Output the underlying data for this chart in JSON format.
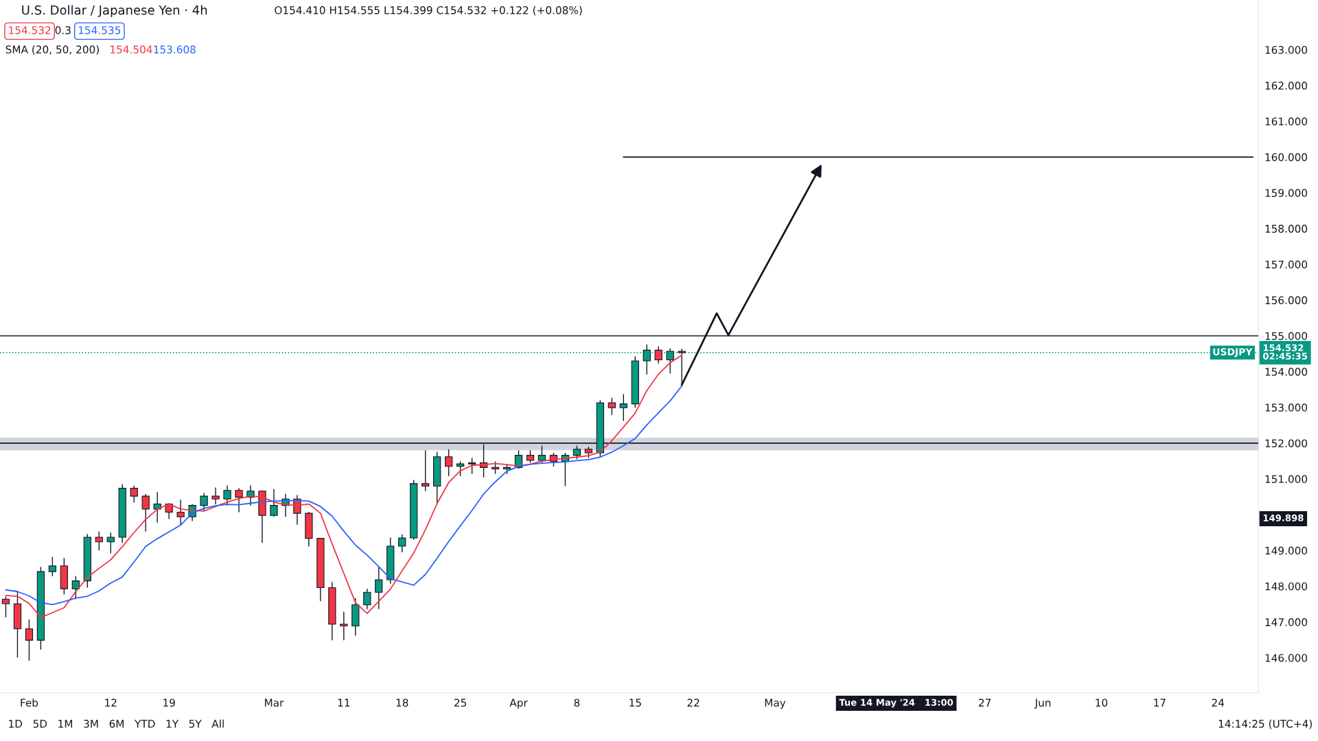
{
  "chart_data": {
    "type": "candlestick",
    "title": "U.S. Dollar / Japanese Yen · 4h",
    "subtitle": "O154.410 H154.555 L154.399 C154.532 +0.122 (+0.08%)",
    "categories": [
      null,
      null,
      "Feb",
      null,
      null,
      null,
      null,
      null,
      null,
      "12",
      null,
      null,
      null,
      null,
      "19",
      null,
      null,
      null,
      null,
      null,
      null,
      null,
      null,
      "Mar",
      null,
      null,
      null,
      null,
      null,
      "11",
      null,
      null,
      null,
      null,
      "18",
      null,
      null,
      null,
      null,
      "25",
      null,
      null,
      null,
      null,
      "Apr",
      null,
      null,
      null,
      null,
      "8",
      null,
      null,
      null,
      null,
      "15",
      null,
      null,
      null,
      null,
      "22",
      null,
      null,
      null,
      null,
      null,
      null,
      "May",
      null,
      null,
      null,
      null,
      null,
      null,
      null,
      null,
      null,
      null,
      null,
      null,
      null,
      null,
      null,
      null,
      null,
      "27",
      null,
      null,
      null,
      null,
      "Jun",
      null,
      null,
      null,
      null,
      "10",
      null,
      null,
      null,
      null,
      "17",
      null,
      null,
      null,
      null,
      "24",
      null,
      null,
      null
    ],
    "ohlc": [
      [
        147.64,
        147.71,
        147.13,
        147.51
      ],
      [
        147.51,
        147.87,
        146.01,
        146.81
      ],
      [
        146.81,
        147.07,
        145.92,
        146.49
      ],
      [
        146.49,
        148.54,
        146.23,
        148.41
      ],
      [
        148.41,
        148.82,
        148.28,
        148.57
      ],
      [
        148.57,
        148.79,
        147.77,
        147.93
      ],
      [
        147.93,
        148.28,
        147.64,
        148.15
      ],
      [
        148.15,
        149.46,
        147.96,
        149.37
      ],
      [
        149.37,
        149.53,
        149.0,
        149.24
      ],
      [
        149.24,
        149.5,
        148.92,
        149.37
      ],
      [
        149.37,
        150.85,
        149.21,
        150.74
      ],
      [
        150.74,
        150.81,
        150.34,
        150.52
      ],
      [
        150.52,
        150.58,
        149.53,
        150.16
      ],
      [
        150.16,
        150.63,
        149.78,
        150.3
      ],
      [
        150.3,
        150.33,
        149.88,
        150.07
      ],
      [
        150.07,
        150.42,
        149.7,
        149.94
      ],
      [
        149.94,
        150.29,
        149.82,
        150.26
      ],
      [
        150.26,
        150.61,
        150.1,
        150.52
      ],
      [
        150.52,
        150.76,
        150.29,
        150.44
      ],
      [
        150.44,
        150.82,
        150.26,
        150.68
      ],
      [
        150.68,
        150.74,
        150.07,
        150.49
      ],
      [
        150.49,
        150.82,
        150.26,
        150.66
      ],
      [
        150.66,
        150.68,
        149.21,
        149.98
      ],
      [
        149.98,
        150.72,
        149.94,
        150.26
      ],
      [
        150.26,
        150.58,
        149.94,
        150.44
      ],
      [
        150.44,
        150.55,
        149.72,
        150.04
      ],
      [
        150.04,
        150.08,
        149.11,
        149.34
      ],
      [
        149.34,
        149.34,
        147.58,
        147.96
      ],
      [
        147.96,
        148.12,
        146.49,
        146.94
      ],
      [
        146.94,
        147.29,
        146.49,
        146.89
      ],
      [
        146.89,
        147.67,
        146.62,
        147.48
      ],
      [
        147.48,
        147.93,
        147.36,
        147.83
      ],
      [
        147.83,
        148.54,
        147.36,
        148.18
      ],
      [
        148.18,
        149.36,
        148.07,
        149.12
      ],
      [
        149.12,
        149.45,
        148.95,
        149.35
      ],
      [
        149.35,
        150.97,
        149.3,
        150.87
      ],
      [
        150.87,
        151.8,
        150.66,
        150.8
      ],
      [
        150.8,
        151.76,
        150.32,
        151.62
      ],
      [
        151.62,
        151.83,
        151.08,
        151.35
      ],
      [
        151.35,
        151.49,
        151.08,
        151.42
      ],
      [
        151.42,
        151.59,
        151.14,
        151.45
      ],
      [
        151.45,
        151.97,
        151.04,
        151.32
      ],
      [
        151.32,
        151.49,
        151.14,
        151.28
      ],
      [
        151.28,
        151.42,
        151.14,
        151.32
      ],
      [
        151.32,
        151.8,
        151.28,
        151.66
      ],
      [
        151.66,
        151.8,
        151.45,
        151.52
      ],
      [
        151.52,
        151.93,
        151.45,
        151.66
      ],
      [
        151.66,
        151.73,
        151.35,
        151.49
      ],
      [
        151.49,
        151.73,
        150.8,
        151.66
      ],
      [
        151.66,
        151.93,
        151.55,
        151.83
      ],
      [
        151.83,
        151.9,
        151.59,
        151.73
      ],
      [
        151.73,
        153.2,
        151.62,
        153.13
      ],
      [
        153.13,
        153.27,
        152.79,
        152.99
      ],
      [
        152.99,
        153.37,
        152.62,
        153.1
      ],
      [
        153.1,
        154.43,
        152.99,
        154.3
      ],
      [
        154.3,
        154.76,
        153.92,
        154.6
      ],
      [
        154.6,
        154.71,
        154.23,
        154.33
      ],
      [
        154.33,
        154.65,
        153.95,
        154.57
      ],
      [
        154.57,
        154.64,
        153.61,
        154.532
      ],
      null,
      null,
      null,
      null,
      null,
      null,
      null,
      null,
      null,
      null,
      null,
      null,
      null,
      null,
      null,
      null,
      null,
      null,
      null,
      null,
      null,
      null,
      null,
      null,
      null,
      null,
      null,
      null,
      null,
      null,
      null,
      null,
      null,
      null,
      null,
      null,
      null,
      null,
      null,
      null,
      null,
      null,
      null,
      null,
      null,
      null,
      null,
      null,
      null
    ],
    "colors": [
      "#f23645",
      "#f23645",
      "#f23645",
      "#089981",
      "#089981",
      "#f23645",
      "#089981",
      "#089981",
      "#f23645",
      "#089981",
      "#089981",
      "#f23645",
      "#f23645",
      "#089981",
      "#f23645",
      "#f23645",
      "#089981",
      "#089981",
      "#f23645",
      "#089981",
      "#f23645",
      "#089981",
      "#f23645",
      "#089981",
      "#089981",
      "#f23645",
      "#f23645",
      "#f23645",
      "#f23645",
      "#f23645",
      "#089981",
      "#089981",
      "#089981",
      "#089981",
      "#089981",
      "#089981",
      "#f23645",
      "#089981",
      "#f23645",
      "#089981",
      "#089981",
      "#f23645",
      "#f23645",
      "#089981",
      "#089981",
      "#f23645",
      "#089981",
      "#f23645",
      "#089981",
      "#089981",
      "#f23645",
      "#089981",
      "#f23645",
      "#089981",
      "#089981",
      "#089981",
      "#f23645",
      "#089981",
      "#f23645",
      null,
      null,
      null,
      null,
      null,
      null,
      null,
      null,
      null,
      null,
      null,
      null,
      null,
      null,
      null,
      null,
      null,
      null,
      null,
      null,
      null,
      null,
      null,
      null,
      null,
      null,
      null,
      null,
      null,
      null,
      null,
      null,
      null,
      null,
      null,
      null,
      null,
      null,
      null,
      null,
      null,
      null,
      null,
      null,
      null,
      null,
      null,
      null,
      null
    ],
    "series": [
      {
        "type": "line",
        "color": "#f23645",
        "values": [
          147.74,
          147.72,
          147.52,
          147.13,
          147.26,
          147.4,
          147.85,
          148.25,
          148.5,
          148.74,
          149.11,
          149.5,
          149.87,
          150.15,
          150.3,
          150.16,
          150.12,
          150.1,
          150.23,
          150.35,
          150.45,
          150.52,
          150.5,
          150.35,
          150.28,
          150.26,
          150.3,
          150.04,
          149.18,
          148.36,
          147.54,
          147.24,
          147.58,
          147.92,
          148.43,
          148.93,
          149.58,
          150.31,
          150.9,
          151.23,
          151.38,
          151.4,
          151.43,
          151.4,
          151.36,
          151.41,
          151.5,
          151.54,
          151.58,
          151.61,
          151.65,
          151.75,
          152.07,
          152.45,
          152.84,
          153.47,
          153.93,
          154.25,
          154.46,
          null,
          null,
          null,
          null,
          null,
          null,
          null,
          null,
          null,
          null,
          null,
          null,
          null,
          null,
          null,
          null,
          null,
          null,
          null,
          null,
          null,
          null,
          null,
          null,
          null,
          null,
          null,
          null,
          null,
          null,
          null,
          null,
          null,
          null,
          null,
          null,
          null,
          null,
          null,
          null,
          null,
          null,
          null,
          null,
          null,
          null,
          null,
          null,
          null
        ]
      },
      {
        "type": "line",
        "color": "#2962ff",
        "values": [
          147.9,
          147.85,
          147.73,
          147.54,
          147.49,
          147.57,
          147.67,
          147.72,
          147.87,
          148.09,
          148.26,
          148.68,
          149.11,
          149.33,
          149.52,
          149.71,
          150.05,
          150.18,
          150.25,
          150.29,
          150.28,
          150.32,
          150.36,
          150.38,
          150.39,
          150.4,
          150.38,
          150.23,
          149.96,
          149.54,
          149.15,
          148.87,
          148.55,
          148.21,
          148.12,
          148.03,
          148.33,
          148.78,
          149.25,
          149.69,
          150.12,
          150.58,
          150.92,
          151.22,
          151.35,
          151.41,
          151.44,
          151.46,
          151.48,
          151.51,
          151.54,
          151.61,
          151.75,
          151.93,
          152.13,
          152.51,
          152.85,
          153.18,
          153.6,
          null,
          null,
          null,
          null,
          null,
          null,
          null,
          null,
          null,
          null,
          null,
          null,
          null,
          null,
          null,
          null,
          null,
          null,
          null,
          null,
          null,
          null,
          null,
          null,
          null,
          null,
          null,
          null,
          null,
          null,
          null,
          null,
          null,
          null,
          null,
          null,
          null,
          null,
          null,
          null,
          null,
          null,
          null,
          null,
          null,
          null,
          null,
          null,
          null
        ]
      },
      {
        "type": "line",
        "color": "#131722",
        "values": [
          null,
          null,
          null,
          null,
          null,
          null,
          null,
          null,
          null,
          null,
          null,
          null,
          null,
          null,
          null,
          null,
          null,
          null,
          null,
          null,
          null,
          null,
          null,
          null,
          null,
          null,
          null,
          null,
          null,
          null,
          null,
          null,
          null,
          null,
          null,
          null,
          null,
          null,
          null,
          null,
          null,
          null,
          null,
          null,
          null,
          null,
          null,
          null,
          null,
          null,
          null,
          null,
          null,
          160,
          160,
          160,
          160,
          160,
          160,
          160,
          160,
          160,
          160,
          160,
          160,
          160,
          160,
          160,
          160,
          160,
          160,
          160,
          160,
          160,
          160,
          160,
          160,
          160,
          160,
          160,
          160,
          160,
          160,
          160,
          160,
          160,
          160,
          160,
          160,
          160,
          160,
          160,
          160,
          160,
          160,
          160,
          160,
          160,
          160,
          160,
          160,
          160,
          160,
          160,
          160,
          160,
          160,
          160
        ]
      }
    ],
    "ref_lines": [
      {
        "axis": "y",
        "value": 155.0,
        "color": "#131722",
        "line_style": "solid"
      },
      {
        "axis": "y",
        "value": 152.0,
        "color": "#131722",
        "line_style": "solid"
      },
      {
        "axis": "y",
        "value": 154.532,
        "label": "USDJPY",
        "color": "#089981",
        "line_style": "dotted"
      }
    ],
    "bands": [
      {
        "axis": "y",
        "from": 151.8,
        "to": 152.15,
        "color": "#d1d4dc"
      }
    ],
    "annotations": [
      "154.532",
      "0.3",
      "154.535",
      "SMA (20, 50, 200)",
      "154.504",
      "153.608",
      "1D   5D   1M   3M   6M   YTD   1Y   5Y   All",
      "14:14:25 (UTC+4)",
      "154.532\n02:45:35",
      "149.898",
      "Tue 14 May '24   13:00"
    ],
    "ylim": [
      145.02,
      164.39
    ],
    "yticks": [
      {
        "value": 146,
        "label": "146.000"
      },
      {
        "value": 147,
        "label": "147.000"
      },
      {
        "value": 148,
        "label": "148.000"
      },
      {
        "value": 149,
        "label": "149.000"
      },
      {
        "value": 151,
        "label": "151.000"
      },
      {
        "value": 152,
        "label": "152.000"
      },
      {
        "value": 153,
        "label": "153.000"
      },
      {
        "value": 154,
        "label": "154.000"
      },
      {
        "value": 155,
        "label": "155.000"
      },
      {
        "value": 156,
        "label": "156.000"
      },
      {
        "value": 157,
        "label": "157.000"
      },
      {
        "value": 158,
        "label": "158.000"
      },
      {
        "value": 159,
        "label": "159.000"
      },
      {
        "value": 160,
        "label": "160.000"
      },
      {
        "value": 161,
        "label": "161.000"
      },
      {
        "value": 162,
        "label": "162.000"
      },
      {
        "value": 163,
        "label": "163.000"
      }
    ],
    "grid": false
  }
}
